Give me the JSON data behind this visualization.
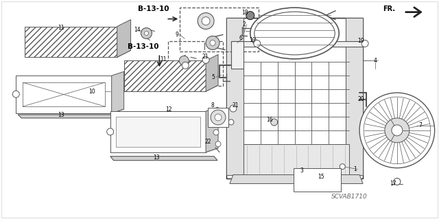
{
  "bg_color": "#ffffff",
  "diagram_code": "SCVAB1710",
  "fr_label": "FR.",
  "b13_10_label": "B-13-10",
  "gray": "#555555",
  "dark": "#222222",
  "light_gray": "#aaaaaa",
  "fig_w": 6.4,
  "fig_h": 3.19
}
